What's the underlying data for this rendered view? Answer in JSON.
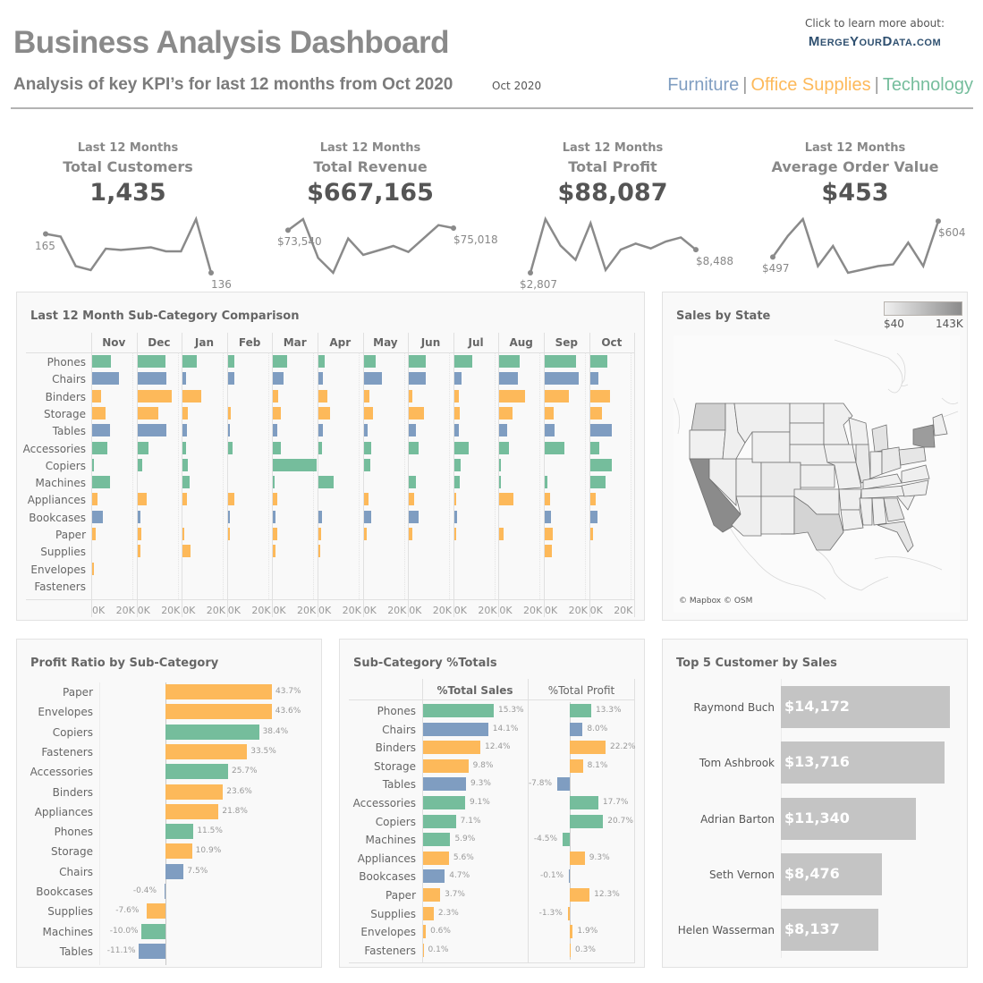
{
  "header": {
    "title": "Business Analysis Dashboard",
    "subtitle": "Analysis of key KPI’s for last 12 months from Oct 2020",
    "period": "Oct 2020",
    "learn_more": "Click to learn more about:",
    "brand": "MergeYourData.com",
    "legend": [
      {
        "label": "Furniture",
        "color": "#7f9dc1"
      },
      {
        "label": "Office Supplies",
        "color": "#fdb95a"
      },
      {
        "label": "Technology",
        "color": "#75bd9c"
      }
    ],
    "legend_separator": "|"
  },
  "colors": {
    "Furniture": "#7f9dc1",
    "Office Supplies": "#fdb95a",
    "Technology": "#75bd9c",
    "spark": "#8a8a8a",
    "customer_bar": "#c4c4c4"
  },
  "kpis": [
    {
      "period_label": "Last 12 Months",
      "name": "Total Customers",
      "value": "1,435",
      "start_label": "165",
      "end_label": "136",
      "series": [
        165,
        163,
        141,
        138,
        154,
        153,
        154,
        155,
        152,
        152,
        176,
        136
      ]
    },
    {
      "period_label": "Last 12 Months",
      "name": "Total Revenue",
      "value": "$667,165",
      "start_label": "$73,540",
      "end_label": "$75,018",
      "series": [
        73540,
        81000,
        55000,
        45000,
        68000,
        57000,
        60000,
        63000,
        59000,
        68000,
        77000,
        75018
      ]
    },
    {
      "period_label": "Last 12 Months",
      "name": "Total Profit",
      "value": "$88,087",
      "start_label": "$2,807",
      "end_label": "$8,488",
      "series": [
        2807,
        16000,
        9500,
        6000,
        15000,
        3500,
        8500,
        10000,
        8800,
        10500,
        11500,
        8488
      ]
    },
    {
      "period_label": "Last 12 Months",
      "name": "Average Order Value",
      "value": "$453",
      "start_label": "$497",
      "end_label": "$604",
      "series": [
        497,
        560,
        610,
        470,
        530,
        450,
        460,
        470,
        475,
        540,
        470,
        604
      ]
    }
  ],
  "subcat_comparison": {
    "title": "Last 12 Month Sub-Category Comparison",
    "months": [
      "Nov",
      "Dec",
      "Jan",
      "Feb",
      "Mar",
      "Apr",
      "May",
      "Jun",
      "Jul",
      "Aug",
      "Sep",
      "Oct"
    ],
    "axis_ticks": [
      "0K",
      "20K"
    ],
    "rows": [
      {
        "name": "Phones",
        "category": "Technology",
        "values": [
          9000,
          13500,
          7000,
          3000,
          7000,
          3000,
          6000,
          8000,
          9000,
          10000,
          15000,
          8500
        ]
      },
      {
        "name": "Chairs",
        "category": "Furniture",
        "values": [
          13000,
          14300,
          1700,
          3000,
          5000,
          2000,
          9000,
          8000,
          3500,
          9000,
          16500,
          4000
        ]
      },
      {
        "name": "Binders",
        "category": "Office Supplies",
        "values": [
          4500,
          16500,
          9000,
          0,
          2500,
          4500,
          2700,
          1800,
          2200,
          12500,
          11600,
          9800
        ]
      },
      {
        "name": "Storage",
        "category": "Office Supplies",
        "values": [
          6700,
          10300,
          2700,
          1300,
          3600,
          5800,
          4500,
          7200,
          2700,
          6200,
          4500,
          5800
        ]
      },
      {
        "name": "Tables",
        "category": "Furniture",
        "values": [
          8500,
          14300,
          2200,
          1000,
          2200,
          2000,
          1800,
          3200,
          2200,
          3600,
          4900,
          10700
        ]
      },
      {
        "name": "Accessories",
        "category": "Technology",
        "values": [
          7600,
          5400,
          1800,
          2200,
          3600,
          1800,
          3600,
          4500,
          7200,
          4500,
          9400,
          4500
        ]
      },
      {
        "name": "Copiers",
        "category": "Technology",
        "values": [
          900,
          2200,
          2700,
          0,
          21000,
          0,
          3200,
          0,
          3200,
          900,
          0,
          10700
        ]
      },
      {
        "name": "Machines",
        "category": "Technology",
        "values": [
          8500,
          0,
          3600,
          0,
          600,
          7200,
          0,
          3600,
          2700,
          900,
          1300,
          7600
        ]
      },
      {
        "name": "Appliances",
        "category": "Office Supplies",
        "values": [
          2700,
          4500,
          2200,
          3200,
          2200,
          0,
          2200,
          2700,
          900,
          6700,
          2700,
          2700
        ]
      },
      {
        "name": "Bookcases",
        "category": "Furniture",
        "values": [
          5400,
          1300,
          0,
          900,
          1300,
          1800,
          3600,
          4900,
          1300,
          0,
          3200,
          3600
        ]
      },
      {
        "name": "Paper",
        "category": "Office Supplies",
        "values": [
          1800,
          1800,
          400,
          900,
          2200,
          1300,
          1300,
          1800,
          900,
          1800,
          4000,
          1300
        ]
      },
      {
        "name": "Supplies",
        "category": "Office Supplies",
        "values": [
          0,
          1300,
          4000,
          0,
          1300,
          400,
          0,
          0,
          0,
          0,
          3600,
          0
        ]
      },
      {
        "name": "Envelopes",
        "category": "Office Supplies",
        "values": [
          400,
          0,
          0,
          0,
          0,
          0,
          0,
          0,
          0,
          0,
          0,
          0
        ]
      },
      {
        "name": "Fasteners",
        "category": "Office Supplies",
        "values": [
          0,
          0,
          0,
          0,
          0,
          0,
          0,
          0,
          0,
          0,
          0,
          0
        ]
      }
    ]
  },
  "map": {
    "title": "Sales by State",
    "legend_min": "$40",
    "legend_max": "143K",
    "credit": "© Mapbox © OSM"
  },
  "profit_ratio": {
    "title": "Profit Ratio by Sub-Category",
    "rows": [
      {
        "name": "Paper",
        "category": "Office Supplies",
        "value": 43.7,
        "label": "43.7%"
      },
      {
        "name": "Envelopes",
        "category": "Office Supplies",
        "value": 43.6,
        "label": "43.6%"
      },
      {
        "name": "Copiers",
        "category": "Technology",
        "value": 38.4,
        "label": "38.4%"
      },
      {
        "name": "Fasteners",
        "category": "Office Supplies",
        "value": 33.5,
        "label": "33.5%"
      },
      {
        "name": "Accessories",
        "category": "Technology",
        "value": 25.7,
        "label": "25.7%"
      },
      {
        "name": "Binders",
        "category": "Office Supplies",
        "value": 23.6,
        "label": "23.6%"
      },
      {
        "name": "Appliances",
        "category": "Office Supplies",
        "value": 21.8,
        "label": "21.8%"
      },
      {
        "name": "Phones",
        "category": "Technology",
        "value": 11.5,
        "label": "11.5%"
      },
      {
        "name": "Storage",
        "category": "Office Supplies",
        "value": 10.9,
        "label": "10.9%"
      },
      {
        "name": "Chairs",
        "category": "Furniture",
        "value": 7.5,
        "label": "7.5%"
      },
      {
        "name": "Bookcases",
        "category": "Furniture",
        "value": -0.4,
        "label": "-0.4%"
      },
      {
        "name": "Supplies",
        "category": "Office Supplies",
        "value": -7.6,
        "label": "-7.6%"
      },
      {
        "name": "Machines",
        "category": "Technology",
        "value": -10.0,
        "label": "-10.0%"
      },
      {
        "name": "Tables",
        "category": "Furniture",
        "value": -11.1,
        "label": "-11.1%"
      }
    ]
  },
  "pct_totals": {
    "title": "Sub-Category %Totals",
    "col_sales": "%Total Sales",
    "col_profit": "%Total Profit",
    "rows": [
      {
        "name": "Phones",
        "category": "Technology",
        "sales": 15.3,
        "sales_label": "15.3%",
        "profit": 13.3,
        "profit_label": "13.3%"
      },
      {
        "name": "Chairs",
        "category": "Furniture",
        "sales": 14.1,
        "sales_label": "14.1%",
        "profit": 8.0,
        "profit_label": "8.0%"
      },
      {
        "name": "Binders",
        "category": "Office Supplies",
        "sales": 12.4,
        "sales_label": "12.4%",
        "profit": 22.2,
        "profit_label": "22.2%"
      },
      {
        "name": "Storage",
        "category": "Office Supplies",
        "sales": 9.8,
        "sales_label": "9.8%",
        "profit": 8.1,
        "profit_label": "8.1%"
      },
      {
        "name": "Tables",
        "category": "Furniture",
        "sales": 9.3,
        "sales_label": "9.3%",
        "profit": -7.8,
        "profit_label": "-7.8%"
      },
      {
        "name": "Accessories",
        "category": "Technology",
        "sales": 9.1,
        "sales_label": "9.1%",
        "profit": 17.7,
        "profit_label": "17.7%"
      },
      {
        "name": "Copiers",
        "category": "Technology",
        "sales": 7.1,
        "sales_label": "7.1%",
        "profit": 20.7,
        "profit_label": "20.7%"
      },
      {
        "name": "Machines",
        "category": "Technology",
        "sales": 5.9,
        "sales_label": "5.9%",
        "profit": -4.5,
        "profit_label": "-4.5%"
      },
      {
        "name": "Appliances",
        "category": "Office Supplies",
        "sales": 5.6,
        "sales_label": "5.6%",
        "profit": 9.3,
        "profit_label": "9.3%"
      },
      {
        "name": "Bookcases",
        "category": "Furniture",
        "sales": 4.7,
        "sales_label": "4.7%",
        "profit": -0.1,
        "profit_label": "-0.1%"
      },
      {
        "name": "Paper",
        "category": "Office Supplies",
        "sales": 3.7,
        "sales_label": "3.7%",
        "profit": 12.3,
        "profit_label": "12.3%"
      },
      {
        "name": "Supplies",
        "category": "Office Supplies",
        "sales": 2.3,
        "sales_label": "2.3%",
        "profit": -1.3,
        "profit_label": "-1.3%"
      },
      {
        "name": "Envelopes",
        "category": "Office Supplies",
        "sales": 0.6,
        "sales_label": "0.6%",
        "profit": 1.9,
        "profit_label": "1.9%"
      },
      {
        "name": "Fasteners",
        "category": "Office Supplies",
        "sales": 0.1,
        "sales_label": "0.1%",
        "profit": 0.3,
        "profit_label": "0.3%"
      }
    ]
  },
  "top_customers": {
    "title": "Top 5 Customer by Sales",
    "rows": [
      {
        "name": "Raymond Buch",
        "value": 14172,
        "label": "$14,172"
      },
      {
        "name": "Tom Ashbrook",
        "value": 13716,
        "label": "$13,716"
      },
      {
        "name": "Adrian Barton",
        "value": 11340,
        "label": "$11,340"
      },
      {
        "name": "Seth Vernon",
        "value": 8476,
        "label": "$8,476"
      },
      {
        "name": "Helen Wasserman",
        "value": 8137,
        "label": "$8,137"
      }
    ]
  }
}
